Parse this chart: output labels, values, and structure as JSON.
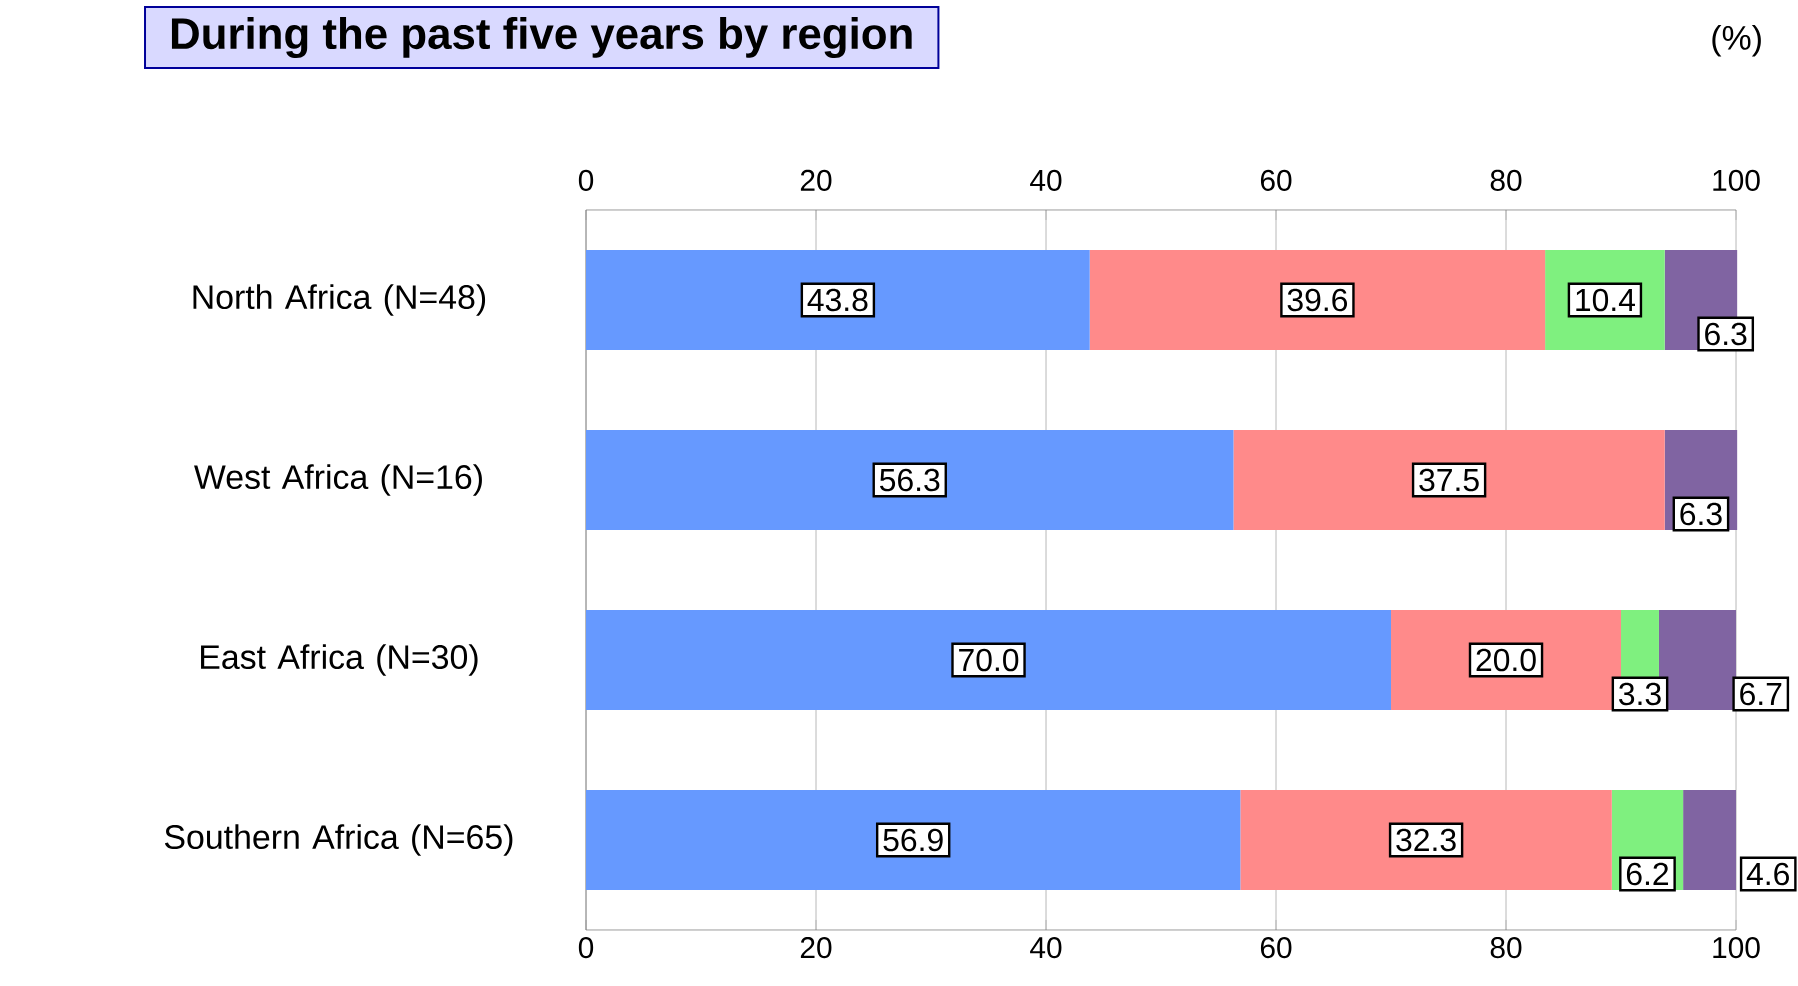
{
  "chart_data": {
    "type": "bar",
    "orientation": "horizontal",
    "stacked": true,
    "title": "During the past five years by region",
    "xlabel": "(%)",
    "categories": [
      "North Africa (N=48)",
      "West Africa (N=16)",
      "East Africa (N=30)",
      "Southern Africa (N=65)"
    ],
    "series": [
      {
        "color": "#6699ff",
        "values": [
          43.8,
          56.3,
          70.0,
          56.9
        ],
        "value_labels": [
          "43.8",
          "56.3",
          "70.0",
          "56.9"
        ]
      },
      {
        "color": "#ff8a8a",
        "values": [
          39.6,
          37.5,
          20.0,
          32.3
        ],
        "value_labels": [
          "39.6",
          "37.5",
          "20.0",
          "32.3"
        ]
      },
      {
        "color": "#7ff07f",
        "values": [
          10.4,
          null,
          3.3,
          6.2
        ],
        "value_labels": [
          "10.4",
          null,
          "3.3",
          "6.2"
        ]
      },
      {
        "color": "#8064a2",
        "values": [
          6.3,
          6.3,
          6.7,
          4.6
        ],
        "value_labels": [
          "6.3",
          "6.3",
          "6.7",
          "4.6"
        ]
      }
    ],
    "xlim": [
      0,
      100
    ],
    "xticks": [
      0,
      20,
      40,
      60,
      80,
      100
    ],
    "x2lim": [
      0,
      100
    ],
    "x2ticks": [
      0,
      20,
      40,
      60,
      80,
      100
    ],
    "grid": "x"
  }
}
